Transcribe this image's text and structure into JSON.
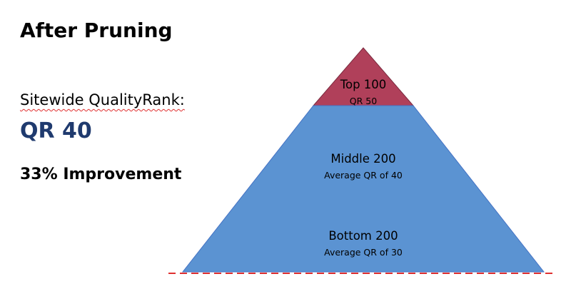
{
  "slide": {
    "title": "After Pruning"
  },
  "metric": {
    "label": "Sitewide QualityRank:",
    "value": "QR 40",
    "improvement": "33% Improvement"
  },
  "pyramid": {
    "tiers": [
      {
        "title": "Top 100",
        "subtitle": "QR 50",
        "color": "#b0405a"
      },
      {
        "title": "Middle 200",
        "subtitle": "Average QR of 40",
        "color": "#5b93d2"
      },
      {
        "title": "Bottom 200",
        "subtitle": "Average QR of 30",
        "color": "#5b93d2"
      }
    ],
    "outline_color": "#4472c4",
    "baseline_color": "#e03030"
  }
}
